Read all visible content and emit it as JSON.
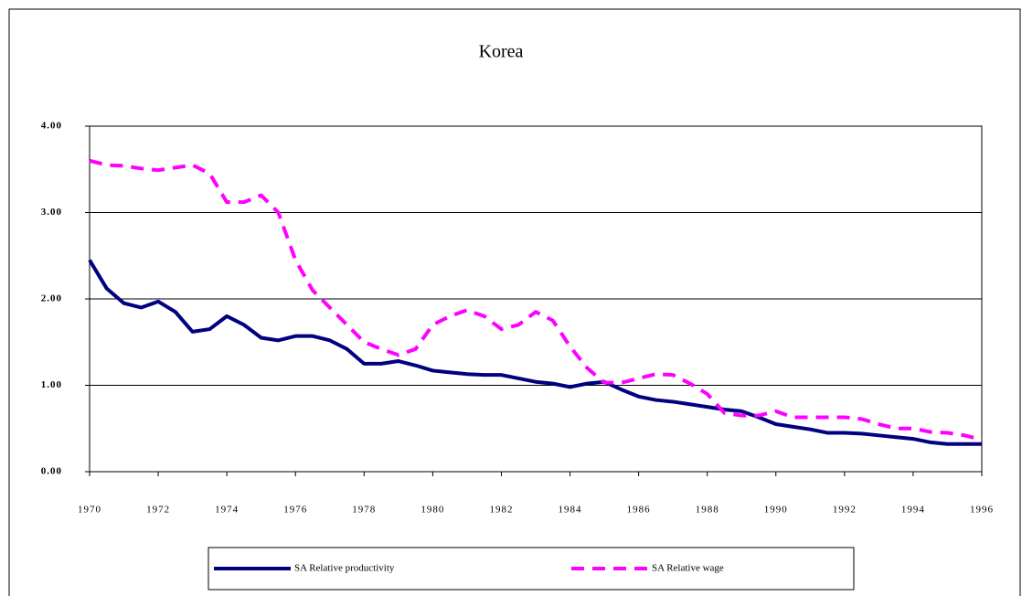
{
  "chart_data": {
    "type": "line",
    "title": "Korea",
    "x": [
      1970,
      1970.5,
      1971,
      1971.5,
      1972,
      1972.5,
      1973,
      1973.5,
      1974,
      1974.5,
      1975,
      1975.5,
      1976,
      1976.5,
      1977,
      1977.5,
      1978,
      1978.5,
      1979,
      1979.5,
      1980,
      1980.5,
      1981,
      1981.5,
      1982,
      1982.5,
      1983,
      1983.5,
      1984,
      1984.5,
      1985,
      1985.5,
      1986,
      1986.5,
      1987,
      1987.5,
      1988,
      1988.5,
      1989,
      1989.5,
      1990,
      1990.5,
      1991,
      1991.5,
      1992,
      1992.5,
      1993,
      1993.5,
      1994,
      1994.5,
      1995,
      1995.5,
      1996
    ],
    "series": [
      {
        "name": "SA Relative productivity",
        "color": "#000080",
        "dash": false,
        "values": [
          2.45,
          2.12,
          1.95,
          1.9,
          1.97,
          1.85,
          1.62,
          1.65,
          1.8,
          1.7,
          1.55,
          1.52,
          1.57,
          1.57,
          1.52,
          1.42,
          1.25,
          1.25,
          1.28,
          1.23,
          1.17,
          1.15,
          1.13,
          1.12,
          1.12,
          1.08,
          1.04,
          1.02,
          0.98,
          1.02,
          1.04,
          0.95,
          0.87,
          0.83,
          0.81,
          0.78,
          0.75,
          0.72,
          0.7,
          0.63,
          0.55,
          0.52,
          0.49,
          0.45,
          0.45,
          0.44,
          0.42,
          0.4,
          0.38,
          0.34,
          0.32,
          0.32,
          0.32
        ]
      },
      {
        "name": "SA Relative wage",
        "color": "#ff00ff",
        "dash": true,
        "values": [
          3.6,
          3.55,
          3.54,
          3.51,
          3.49,
          3.52,
          3.55,
          3.45,
          3.12,
          3.12,
          3.2,
          3.0,
          2.45,
          2.1,
          1.9,
          1.7,
          1.5,
          1.42,
          1.35,
          1.42,
          1.7,
          1.8,
          1.87,
          1.8,
          1.65,
          1.7,
          1.85,
          1.75,
          1.45,
          1.2,
          1.03,
          1.03,
          1.08,
          1.13,
          1.12,
          1.02,
          0.9,
          0.68,
          0.65,
          0.65,
          0.7,
          0.63,
          0.63,
          0.63,
          0.63,
          0.61,
          0.55,
          0.5,
          0.5,
          0.46,
          0.45,
          0.42,
          0.37
        ]
      }
    ],
    "xlim": [
      1970,
      1996
    ],
    "xticks": [
      1970,
      1972,
      1974,
      1976,
      1978,
      1980,
      1982,
      1984,
      1986,
      1988,
      1990,
      1992,
      1994,
      1996
    ],
    "ylim": [
      0,
      4
    ],
    "yticks": [
      {
        "value": 0,
        "label": "0.00"
      },
      {
        "value": 1,
        "label": "1.00"
      },
      {
        "value": 2,
        "label": "2.00"
      },
      {
        "value": 3,
        "label": "3.00"
      },
      {
        "value": 4,
        "label": "4.00"
      }
    ],
    "grid": true,
    "legend": "bottom"
  }
}
